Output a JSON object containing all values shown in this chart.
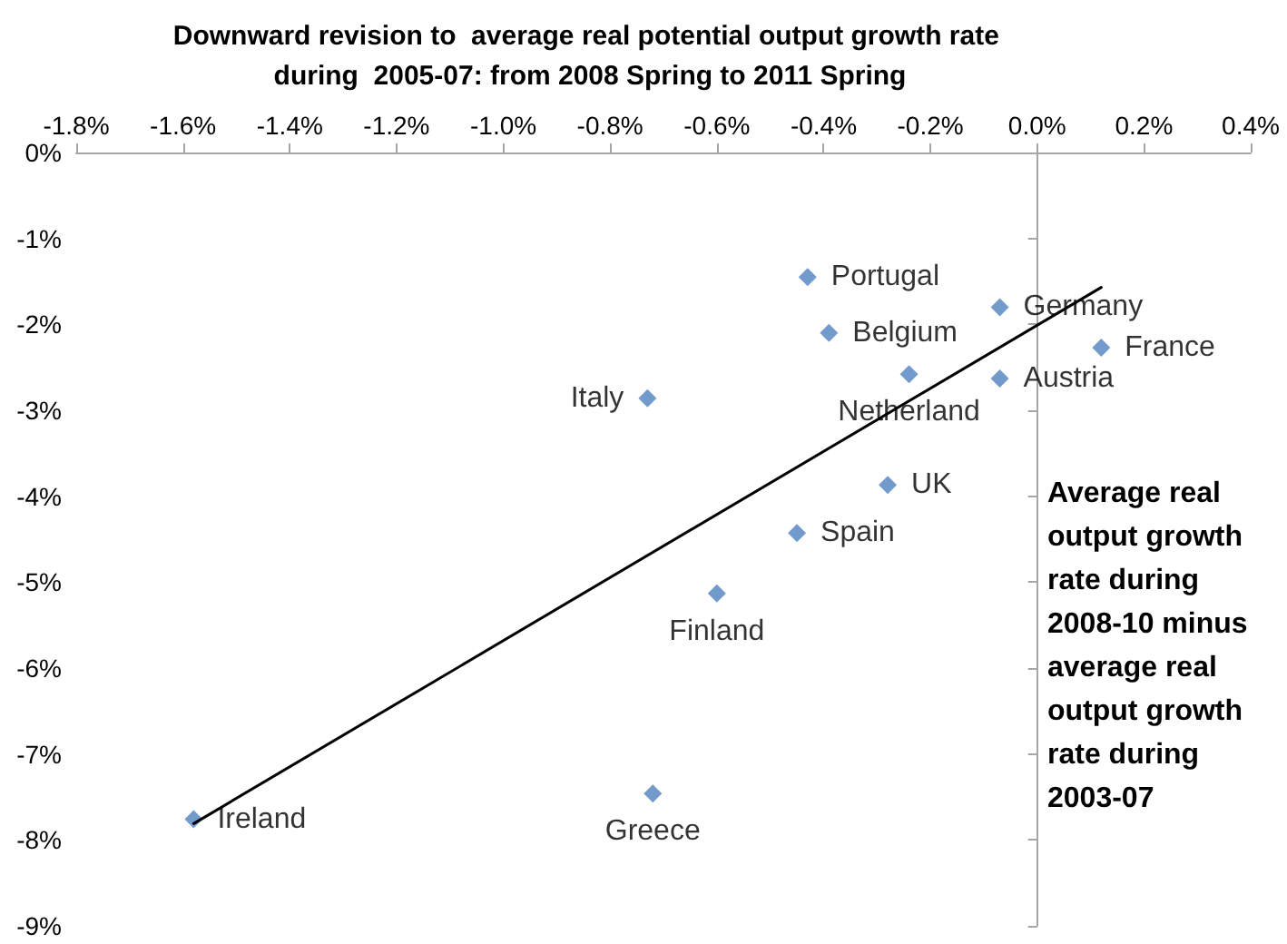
{
  "chart_data": {
    "type": "scatter",
    "title": "Downward revision to  average real potential output growth rate during  2005-07: from 2008 Spring to 2011 Spring",
    "ylabel": "Average real output growth rate during 2008-10 minus average real output growth rate during 2003-07",
    "marker": "diamond",
    "xlim": [
      -1.8,
      0.4
    ],
    "ylim": [
      -9,
      0
    ],
    "xticks": [
      {
        "value": -1.8,
        "label": "-1.8%"
      },
      {
        "value": -1.6,
        "label": "-1.6%"
      },
      {
        "value": -1.4,
        "label": "-1.4%"
      },
      {
        "value": -1.2,
        "label": "-1.2%"
      },
      {
        "value": -1.0,
        "label": "-1.0%"
      },
      {
        "value": -0.8,
        "label": "-0.8%"
      },
      {
        "value": -0.6,
        "label": "-0.6%"
      },
      {
        "value": -0.4,
        "label": "-0.4%"
      },
      {
        "value": -0.2,
        "label": "-0.2%"
      },
      {
        "value": 0,
        "label": "0.0%"
      },
      {
        "value": 0.2,
        "label": "0.2%"
      },
      {
        "value": 0.4,
        "label": "0.4%"
      }
    ],
    "yticks": [
      {
        "value": 0,
        "label": "0%"
      },
      {
        "value": -1,
        "label": "-1%"
      },
      {
        "value": -2,
        "label": "-2%"
      },
      {
        "value": -3,
        "label": "-3%"
      },
      {
        "value": -4,
        "label": "-4%"
      },
      {
        "value": -5,
        "label": "-5%"
      },
      {
        "value": -6,
        "label": "-6%"
      },
      {
        "value": -7,
        "label": "-7%"
      },
      {
        "value": -8,
        "label": "-8%"
      },
      {
        "value": -9,
        "label": "-9%"
      }
    ],
    "series": [
      {
        "color": "#4f81bd",
        "x": [
          -0.43,
          -0.07,
          -0.39,
          0.12,
          -0.24,
          -0.07,
          -0.73,
          -0.28,
          -0.45,
          -0.6,
          -0.72,
          -1.58
        ],
        "values": [
          -1.45,
          -1.8,
          -2.1,
          -2.27,
          -2.58,
          -2.63,
          -2.86,
          -3.87,
          -4.43,
          -5.13,
          -7.46,
          -7.76
        ],
        "value_labels": [
          "Portugal",
          "Germany",
          "Belgium",
          "France",
          "Netherland",
          "Austria",
          "Italy",
          "UK",
          "Spain",
          "Finland",
          "Greece",
          "Ireland"
        ]
      },
      {
        "type": "line",
        "color": "#000000",
        "marker": "none",
        "line_style": "solid",
        "x": [
          -1.58,
          0.12
        ],
        "values": [
          -7.81,
          -1.57
        ]
      }
    ]
  }
}
